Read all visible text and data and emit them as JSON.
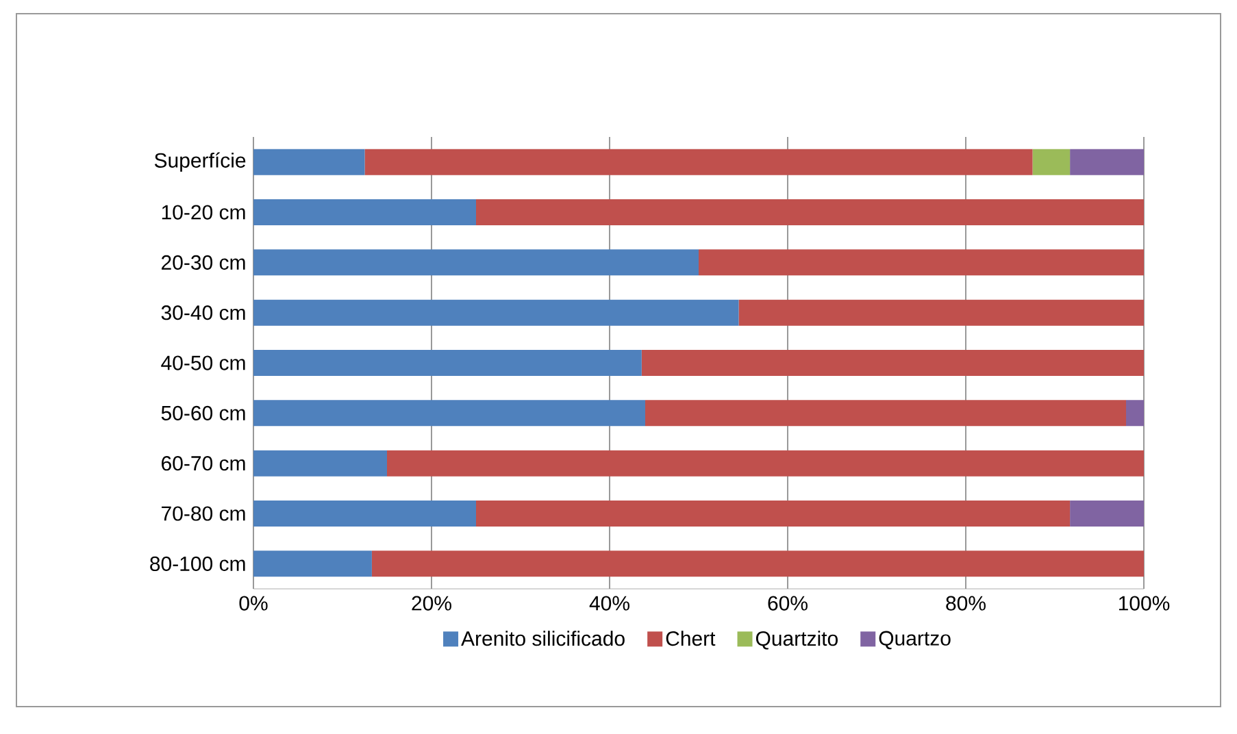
{
  "chart_data": {
    "type": "bar",
    "orientation": "horizontal",
    "stacked": true,
    "categories": [
      "Superfície",
      "10-20 cm",
      "20-30 cm",
      "30-40 cm",
      "40-50 cm",
      "50-60 cm",
      "60-70 cm",
      "70-80 cm",
      "80-100 cm"
    ],
    "series": [
      {
        "name": "Arenito silicificado",
        "color": "#4f81bd",
        "values": [
          12.5,
          25,
          50,
          54.5,
          43.6,
          44,
          15,
          25,
          13.3
        ]
      },
      {
        "name": "Chert",
        "color": "#c0504d",
        "values": [
          75,
          75,
          50,
          45.5,
          56.4,
          54,
          85,
          66.7,
          86.7
        ]
      },
      {
        "name": "Quartzito",
        "color": "#9bbb59",
        "values": [
          4.2,
          0,
          0,
          0,
          0,
          0,
          0,
          0,
          0
        ]
      },
      {
        "name": "Quartzo",
        "color": "#8064a2",
        "values": [
          8.3,
          0,
          0,
          0,
          0,
          2,
          0,
          8.3,
          0
        ]
      }
    ],
    "xlim": [
      0,
      100
    ],
    "xticks": [
      {
        "value": 0,
        "label": "0%"
      },
      {
        "value": 20,
        "label": "20%"
      },
      {
        "value": 40,
        "label": "40%"
      },
      {
        "value": 60,
        "label": "60%"
      },
      {
        "value": 80,
        "label": "80%"
      },
      {
        "value": 100,
        "label": "100%"
      }
    ],
    "grid": "x",
    "legend": "bottom"
  }
}
